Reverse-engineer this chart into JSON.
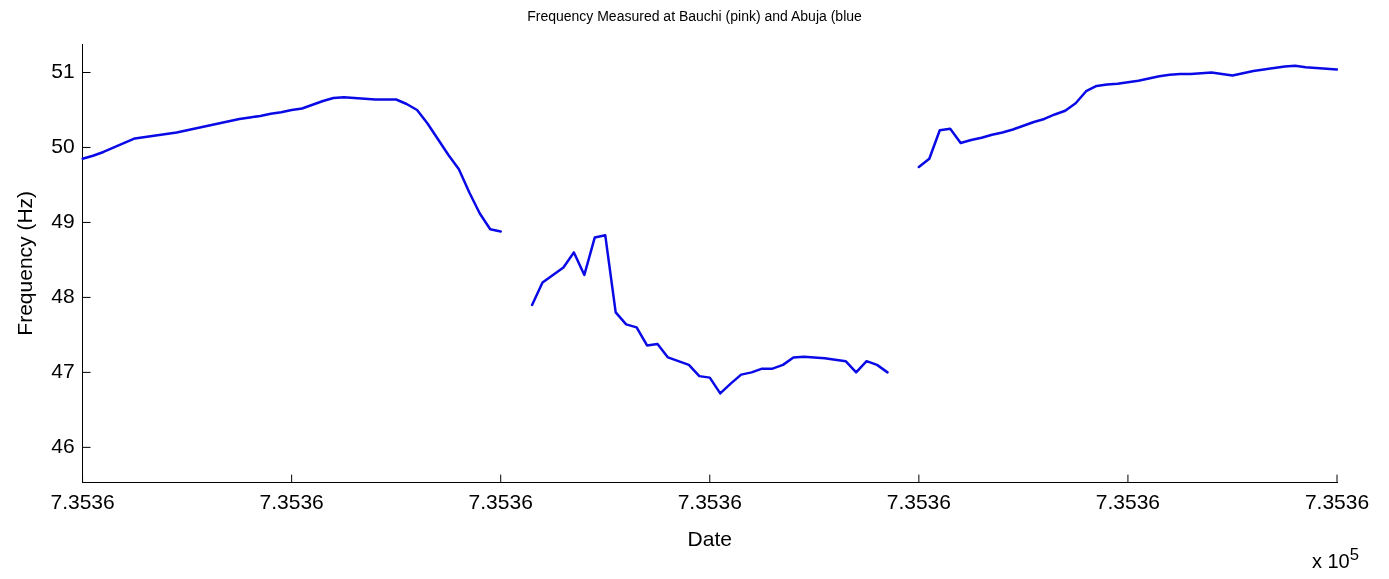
{
  "chart_data": {
    "type": "line",
    "title": "Frequency Measured at Bauchi (pink) and Abuja (blue",
    "xlabel": "Date",
    "ylabel": "Frequency (Hz)",
    "annotations": [
      "x 10$^{5}$"
    ],
    "categories": [
      "7.3536",
      null,
      null,
      null,
      null,
      null,
      null,
      null,
      null,
      null,
      null,
      null,
      null,
      null,
      null,
      null,
      null,
      null,
      null,
      null,
      "7.3536",
      null,
      null,
      null,
      null,
      null,
      null,
      null,
      null,
      null,
      null,
      null,
      null,
      null,
      null,
      null,
      null,
      null,
      null,
      null,
      "7.3536",
      null,
      null,
      null,
      null,
      null,
      null,
      null,
      null,
      null,
      null,
      null,
      null,
      null,
      null,
      null,
      null,
      null,
      null,
      null,
      "7.3536",
      null,
      null,
      null,
      null,
      null,
      null,
      null,
      null,
      null,
      null,
      null,
      null,
      null,
      null,
      null,
      null,
      null,
      null,
      null,
      "7.3536",
      null,
      null,
      null,
      null,
      null,
      null,
      null,
      null,
      null,
      null,
      null,
      null,
      null,
      null,
      null,
      null,
      null,
      null,
      null,
      "7.3536",
      null,
      null,
      null,
      null,
      null,
      null,
      null,
      null,
      null,
      null,
      null,
      null,
      null,
      null,
      null,
      null,
      null,
      null,
      null,
      "7.3536"
    ],
    "series": [
      {
        "color": "#0a0ae6",
        "values": [
          49.85,
          49.89,
          49.94,
          50.0,
          50.06,
          50.12,
          50.14,
          50.16,
          50.18,
          50.2,
          50.23,
          50.26,
          50.29,
          50.32,
          50.35,
          50.38,
          50.4,
          50.42,
          50.45,
          50.47,
          50.5,
          50.52,
          50.57,
          50.62,
          50.66,
          50.67,
          50.66,
          50.65,
          50.64,
          50.64,
          50.64,
          50.58,
          50.5,
          50.32,
          50.11,
          49.9,
          49.71,
          49.4,
          49.12,
          48.91,
          48.88,
          null,
          null,
          47.9,
          48.2,
          48.3,
          48.4,
          48.6,
          48.3,
          48.8,
          48.83,
          47.8,
          47.64,
          47.6,
          47.36,
          47.38,
          47.2,
          47.15,
          47.1,
          46.95,
          46.93,
          46.72,
          46.85,
          46.97,
          47.0,
          47.05,
          47.05,
          47.1,
          47.2,
          47.21,
          47.2,
          47.19,
          47.17,
          47.15,
          47.0,
          47.15,
          47.1,
          47.0,
          null,
          null,
          49.74,
          49.85,
          50.23,
          50.25,
          50.06,
          50.1,
          50.13,
          50.17,
          50.2,
          50.24,
          50.29,
          50.34,
          50.38,
          50.44,
          50.49,
          50.59,
          50.75,
          50.82,
          50.84,
          50.85,
          50.87,
          50.89,
          50.92,
          50.95,
          50.97,
          50.98,
          50.98,
          50.99,
          51.0,
          50.98,
          50.96,
          50.99,
          51.02,
          51.04,
          51.06,
          51.08,
          51.09,
          51.07,
          51.06,
          51.05,
          51.04
        ]
      }
    ],
    "ylim": [
      45.53,
      51.38
    ],
    "yticks": [
      46,
      47,
      48,
      49,
      50,
      51
    ],
    "grid": false,
    "legend": false,
    "marker": "none",
    "line_style": "solid"
  }
}
